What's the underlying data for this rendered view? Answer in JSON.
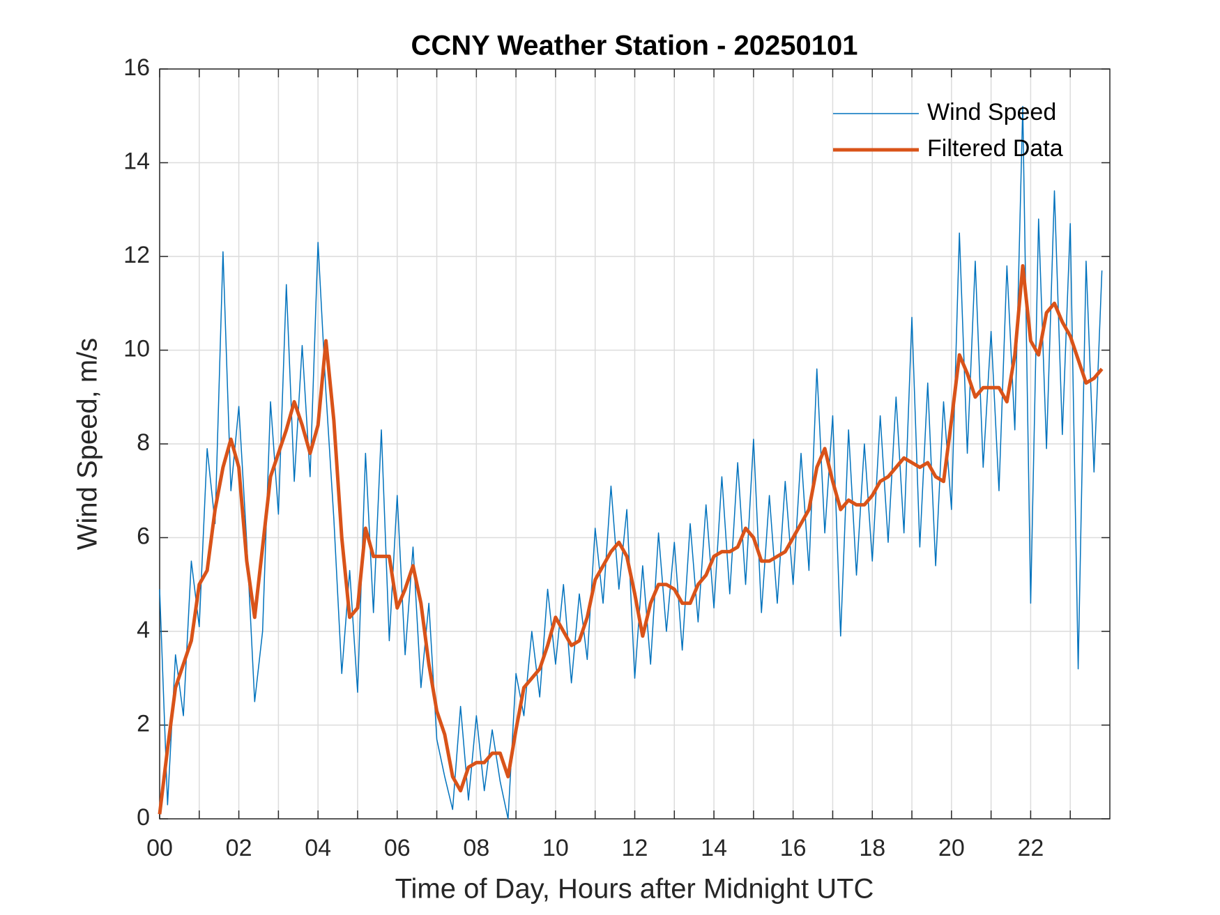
{
  "chart_data": {
    "type": "line",
    "title": "CCNY Weather Station - 20250101",
    "x_label": "Time of Day, Hours after Midnight UTC",
    "y_label": "Wind Speed, m/s",
    "x": [
      0,
      0.2,
      0.4,
      0.6,
      0.8,
      1,
      1.2,
      1.4,
      1.6,
      1.8,
      2,
      2.2,
      2.4,
      2.6,
      2.8,
      3,
      3.2,
      3.4,
      3.6,
      3.8,
      4,
      4.2,
      4.4,
      4.6,
      4.8,
      5,
      5.2,
      5.4,
      5.6,
      5.8,
      6,
      6.2,
      6.4,
      6.6,
      6.8,
      7,
      7.2,
      7.4,
      7.6,
      7.8,
      8,
      8.2,
      8.4,
      8.6,
      8.8,
      9,
      9.2,
      9.4,
      9.6,
      9.8,
      10,
      10.2,
      10.4,
      10.6,
      10.8,
      11,
      11.2,
      11.4,
      11.6,
      11.8,
      12,
      12.2,
      12.4,
      12.6,
      12.8,
      13,
      13.2,
      13.4,
      13.6,
      13.8,
      14,
      14.2,
      14.4,
      14.6,
      14.8,
      15,
      15.2,
      15.4,
      15.6,
      15.8,
      16,
      16.2,
      16.4,
      16.6,
      16.8,
      17,
      17.2,
      17.4,
      17.6,
      17.8,
      18,
      18.2,
      18.4,
      18.6,
      18.8,
      19,
      19.2,
      19.4,
      19.6,
      19.8,
      20,
      20.2,
      20.4,
      20.6,
      20.8,
      21,
      21.2,
      21.4,
      21.6,
      21.8,
      22,
      22.2,
      22.4,
      22.6,
      22.8,
      23,
      23.2,
      23.4,
      23.6,
      23.8
    ],
    "series": [
      {
        "name": "Wind Speed",
        "color": "#0072BD",
        "width": 1.5,
        "values": [
          4.9,
          0.3,
          3.5,
          2.2,
          5.5,
          4.1,
          7.9,
          6.3,
          12.1,
          7.0,
          8.8,
          5.9,
          2.5,
          4.0,
          8.9,
          6.5,
          11.4,
          7.2,
          10.1,
          7.3,
          12.3,
          9.1,
          6.4,
          3.1,
          5.3,
          2.7,
          7.8,
          4.4,
          8.3,
          3.8,
          6.9,
          3.5,
          5.8,
          2.8,
          4.6,
          1.7,
          0.9,
          0.2,
          2.4,
          0.4,
          2.2,
          0.6,
          1.9,
          0.8,
          0,
          3.1,
          2.2,
          4.0,
          2.6,
          4.9,
          3.3,
          5.0,
          2.9,
          4.8,
          3.4,
          6.2,
          4.6,
          7.1,
          4.9,
          6.6,
          3.0,
          5.4,
          3.3,
          6.1,
          4.0,
          5.9,
          3.6,
          6.3,
          4.2,
          6.7,
          4.5,
          7.3,
          4.8,
          7.6,
          5.0,
          8.1,
          4.4,
          6.9,
          4.6,
          7.2,
          5.0,
          7.8,
          5.3,
          9.6,
          6.1,
          8.6,
          3.9,
          8.3,
          5.2,
          8.0,
          5.5,
          8.6,
          5.9,
          9.0,
          6.1,
          10.7,
          5.8,
          9.3,
          5.4,
          8.9,
          6.6,
          12.5,
          7.8,
          11.9,
          7.5,
          10.4,
          7.0,
          11.8,
          8.3,
          15.2,
          4.6,
          12.8,
          7.9,
          13.4,
          8.2,
          12.7,
          3.2,
          11.9,
          7.4,
          11.7
        ]
      },
      {
        "name": "Filtered Data",
        "color": "#D95319",
        "width": 5,
        "values": [
          0.1,
          1.5,
          2.8,
          3.3,
          3.8,
          5.0,
          5.3,
          6.6,
          7.5,
          8.1,
          7.5,
          5.5,
          4.3,
          5.8,
          7.3,
          7.8,
          8.3,
          8.9,
          8.4,
          7.8,
          8.4,
          10.2,
          8.5,
          6.0,
          4.3,
          4.5,
          6.2,
          5.6,
          5.6,
          5.6,
          4.5,
          4.9,
          5.4,
          4.6,
          3.3,
          2.3,
          1.8,
          0.9,
          0.6,
          1.1,
          1.2,
          1.2,
          1.4,
          1.4,
          0.9,
          1.9,
          2.8,
          3.0,
          3.2,
          3.7,
          4.3,
          4.0,
          3.7,
          3.8,
          4.3,
          5.1,
          5.4,
          5.7,
          5.9,
          5.6,
          4.8,
          3.9,
          4.6,
          5.0,
          5.0,
          4.9,
          4.6,
          4.6,
          5.0,
          5.2,
          5.6,
          5.7,
          5.7,
          5.8,
          6.2,
          6.0,
          5.5,
          5.5,
          5.6,
          5.7,
          6.0,
          6.3,
          6.6,
          7.5,
          7.9,
          7.2,
          6.6,
          6.8,
          6.7,
          6.7,
          6.9,
          7.2,
          7.3,
          7.5,
          7.7,
          7.6,
          7.5,
          7.6,
          7.3,
          7.2,
          8.5,
          9.9,
          9.5,
          9.0,
          9.2,
          9.2,
          9.2,
          8.9,
          9.9,
          11.8,
          10.2,
          9.9,
          10.8,
          11.0,
          10.6,
          10.3,
          9.8,
          9.3,
          9.4,
          9.6
        ]
      }
    ],
    "xlim": [
      0,
      24
    ],
    "ylim": [
      0,
      16
    ],
    "xticks": [
      {
        "value": 0,
        "label": "00"
      },
      {
        "value": 2,
        "label": "02"
      },
      {
        "value": 4,
        "label": "04"
      },
      {
        "value": 6,
        "label": "06"
      },
      {
        "value": 8,
        "label": "08"
      },
      10,
      12,
      14,
      16,
      18,
      20,
      22
    ],
    "xminorticks": [
      1,
      3,
      5,
      7,
      9,
      11,
      13,
      15,
      17,
      19,
      21,
      23
    ],
    "yticks": [
      0,
      2,
      4,
      6,
      8,
      10,
      12,
      14,
      16
    ],
    "grid": true,
    "legend": "upper-right"
  }
}
